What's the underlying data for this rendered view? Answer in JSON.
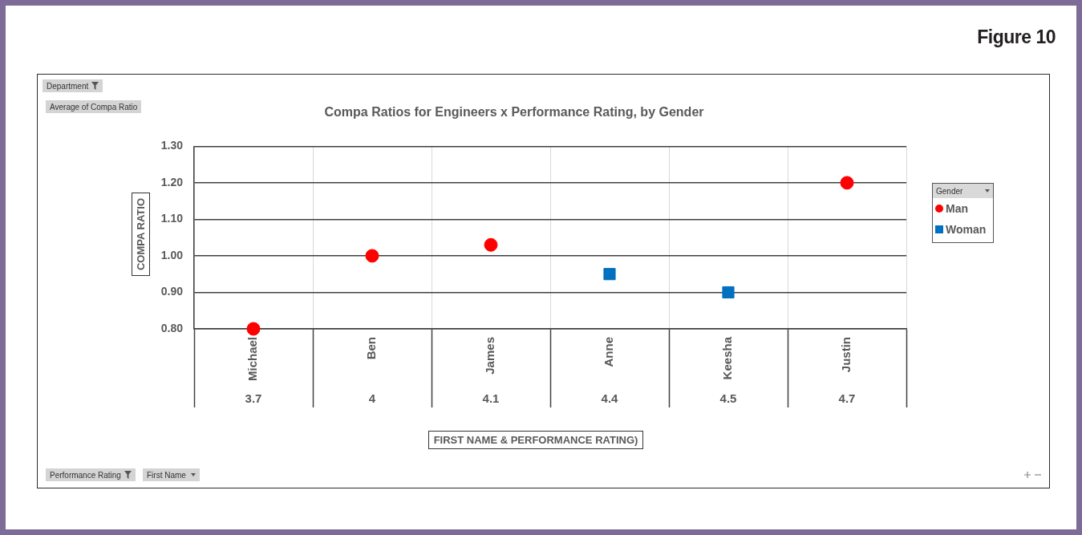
{
  "chart_data": {
    "type": "scatter",
    "title": "Compa Ratios for Engineers x Performance Rating, by Gender",
    "ylabel": "COMPA RATIO",
    "legend_title": "Gender",
    "categories": [
      "Michael",
      "Ben",
      "James",
      "Anne",
      "Keesha",
      "Justin"
    ],
    "series": [
      {
        "name": "Man",
        "color": "#ff0000",
        "marker": "circle",
        "values": [
          0.8,
          1.0,
          1.03,
          null,
          null,
          1.2
        ]
      },
      {
        "name": "Woman",
        "color": "#0070c0",
        "marker": "square",
        "values": [
          null,
          null,
          null,
          0.95,
          0.9,
          null
        ]
      }
    ],
    "ylim": [
      0.8,
      1.3
    ],
    "yticks": [
      {
        "value": 0.8,
        "label": "0.80"
      },
      {
        "value": 0.9,
        "label": "0.90"
      },
      {
        "value": 1.0,
        "label": "1.00"
      },
      {
        "value": 1.1,
        "label": "1.10"
      },
      {
        "value": 1.2,
        "label": "1.20"
      },
      {
        "value": 1.3,
        "label": "1.30"
      }
    ],
    "grid": true,
    "legend": "right",
    "annotations": [
      "Figure 10",
      "Department",
      "Average of Compa Ratio",
      "Performance Rating",
      "First Name",
      "FIRST NAME & PERFORMANCE RATING)",
      "3.7",
      "4",
      "4.1",
      "4.4",
      "4.5",
      "4.7"
    ]
  }
}
